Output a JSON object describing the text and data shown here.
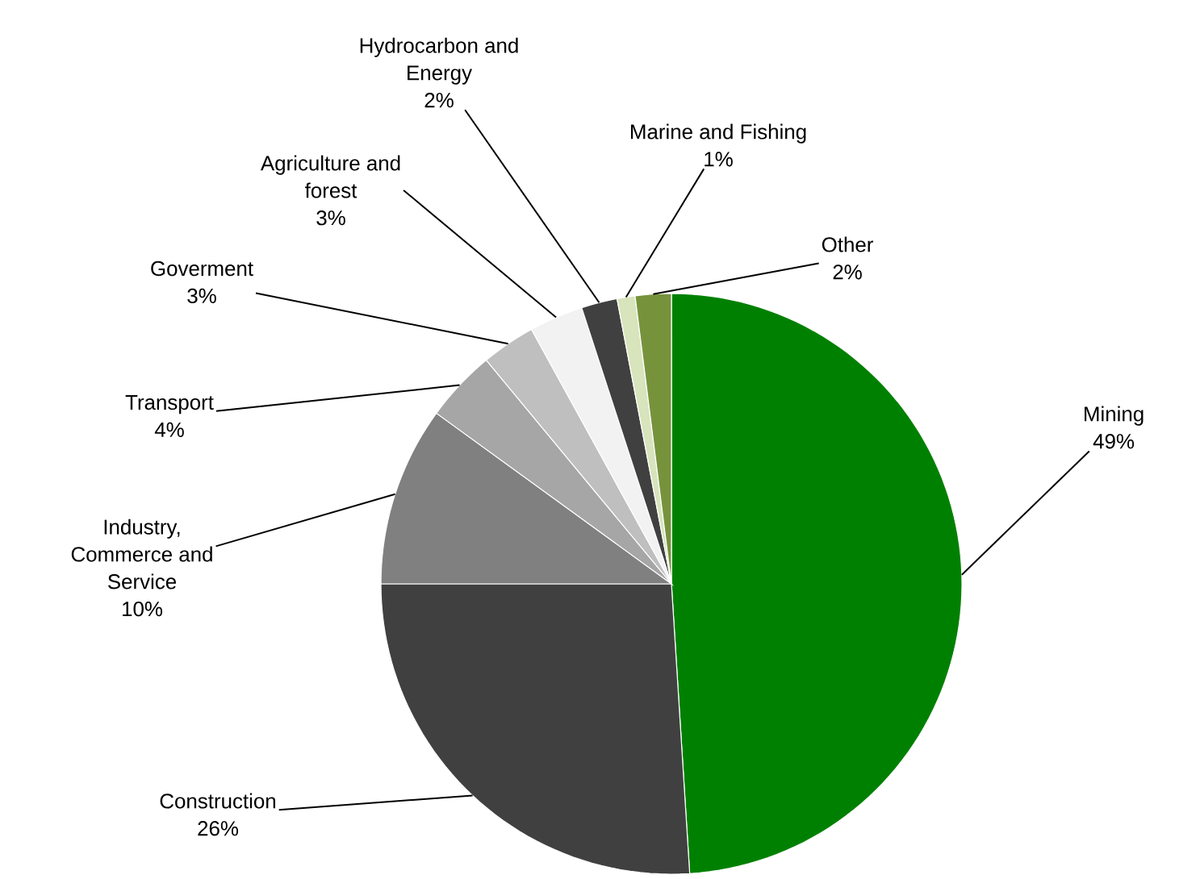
{
  "chart_data": {
    "type": "pie",
    "categories": [
      "Mining",
      "Construction",
      "Industry, Commerce and Service",
      "Transport",
      "Goverment",
      "Agriculture and forest",
      "Hydrocarbon and Energy",
      "Marine and Fishing",
      "Other"
    ],
    "values": [
      49,
      26,
      10,
      4,
      3,
      3,
      2,
      1,
      2
    ],
    "colors": [
      "#008000",
      "#404040",
      "#808080",
      "#a6a6a6",
      "#bfbfbf",
      "#f2f2f2",
      "#404040",
      "#d8e4bc",
      "#76933c"
    ],
    "value_labels": [
      "49%",
      "26%",
      "10%",
      "4%",
      "3%",
      "3%",
      "2%",
      "1%",
      "2%"
    ]
  }
}
